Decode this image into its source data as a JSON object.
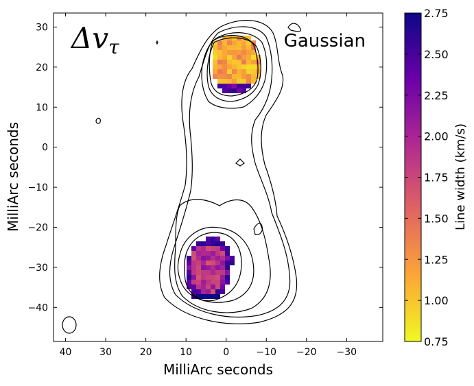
{
  "chart_data": {
    "type": "heatmap",
    "title": "",
    "annotation_symbol": "Δv",
    "annotation_subscript": "τ",
    "annotation_label": "Gaussian",
    "xlabel": "MilliArc seconds",
    "ylabel": "MilliArc seconds",
    "xlim": [
      43,
      -39
    ],
    "ylim": [
      -48.5,
      33.5
    ],
    "xticks": [
      40,
      30,
      20,
      10,
      0,
      -10,
      -20,
      -30
    ],
    "yticks": [
      30,
      20,
      10,
      0,
      -10,
      -20,
      -30,
      -40
    ],
    "tick_labels": {
      "x": [
        "40",
        "30",
        "20",
        "10",
        "0",
        "−10",
        "−20",
        "−30"
      ],
      "y": [
        "30",
        "20",
        "10",
        "0",
        "−10",
        "−20",
        "−30",
        "−40"
      ]
    },
    "colorbar": {
      "label": "Line width (km/s)",
      "range": [
        0.75,
        2.75
      ],
      "ticks": [
        0.75,
        1.0,
        1.25,
        1.5,
        1.75,
        2.0,
        2.25,
        2.5,
        2.75
      ],
      "tick_labels": [
        "0.75",
        "1.00",
        "1.25",
        "1.50",
        "1.75",
        "2.00",
        "2.25",
        "2.50",
        "2.75"
      ],
      "colormap": "plasma_r",
      "colors": [
        "#f0f921",
        "#fca636",
        "#e16462",
        "#b12a90",
        "#6a00a8",
        "#0d0887"
      ]
    },
    "blobs": [
      {
        "name": "north",
        "center": [
          1,
          22
        ],
        "typical_value": 1.15,
        "edge_value": 2.6
      },
      {
        "name": "south",
        "center": [
          4.5,
          -30.5
        ],
        "typical_value": 1.9,
        "edge_value": 2.5
      }
    ],
    "contours": {
      "color": "#000000",
      "levels": 5
    },
    "beam": {
      "center": [
        40,
        -44.5
      ],
      "width": 3.5,
      "height": 4
    }
  }
}
